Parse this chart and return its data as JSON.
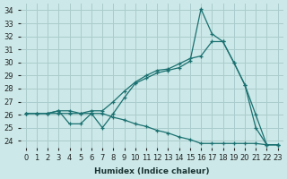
{
  "xlabel": "Humidex (Indice chaleur)",
  "bg_color": "#cce8e8",
  "grid_color": "#aacccc",
  "line_color": "#1a7070",
  "xlim": [
    -0.5,
    23.5
  ],
  "ylim": [
    23.5,
    34.5
  ],
  "yticks": [
    24,
    25,
    26,
    27,
    28,
    29,
    30,
    31,
    32,
    33,
    34
  ],
  "xticks": [
    0,
    1,
    2,
    3,
    4,
    5,
    6,
    7,
    8,
    9,
    10,
    11,
    12,
    13,
    14,
    15,
    16,
    17,
    18,
    19,
    20,
    21,
    22,
    23
  ],
  "series": [
    [
      26.1,
      26.1,
      26.1,
      26.3,
      25.3,
      25.3,
      26.1,
      25.0,
      26.1,
      27.3,
      28.4,
      28.8,
      29.2,
      29.4,
      29.6,
      30.1,
      34.1,
      32.2,
      31.6,
      30.0,
      28.3,
      25.0,
      23.7,
      23.7
    ],
    [
      26.1,
      26.1,
      26.1,
      26.3,
      26.3,
      26.1,
      26.3,
      26.3,
      27.0,
      27.8,
      28.5,
      29.0,
      29.4,
      29.5,
      29.9,
      30.3,
      30.5,
      31.6,
      31.6,
      30.0,
      28.3,
      26.0,
      23.7,
      23.7
    ],
    [
      26.1,
      26.1,
      26.1,
      26.1,
      26.1,
      26.1,
      26.1,
      26.1,
      25.8,
      25.6,
      25.3,
      25.1,
      24.8,
      24.6,
      24.3,
      24.1,
      23.8,
      23.8,
      23.8,
      23.8,
      23.8,
      23.8,
      23.7,
      23.7
    ]
  ]
}
